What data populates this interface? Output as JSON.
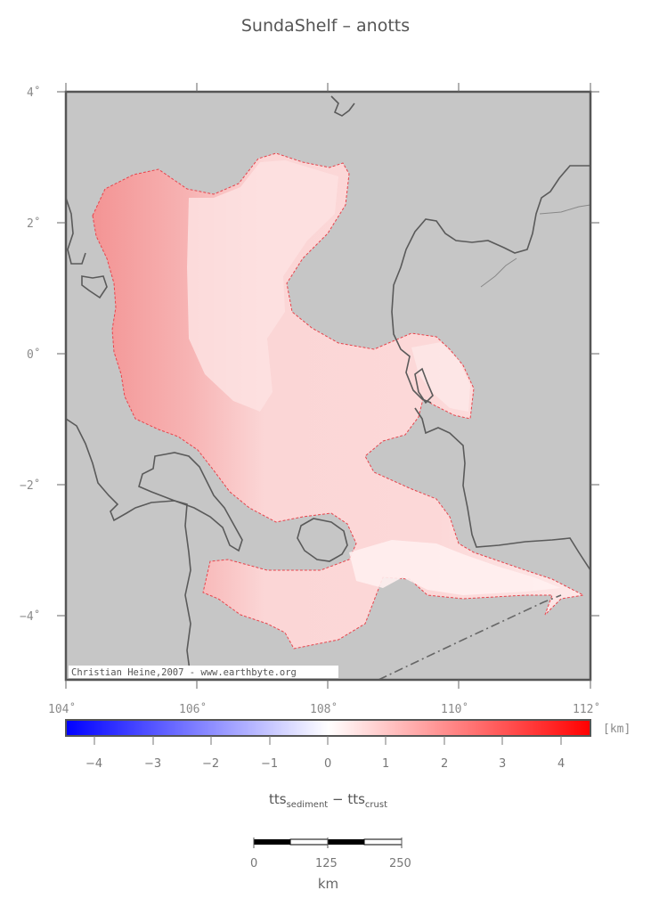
{
  "map": {
    "title": "SundaShelf – anotts",
    "lat_labels": [
      "4˚",
      "2˚",
      "0˚",
      "−2˚",
      "−4˚"
    ],
    "lon_labels": [
      "104˚",
      "106˚",
      "108˚",
      "110˚",
      "112˚"
    ],
    "credit": "Christian Heine,2007 - www.earthbyte.org",
    "colors": {
      "land": "#c6c6c6",
      "anomaly_low": "#fce4e4",
      "anomaly_high": "#f49a9a",
      "outline": "#e8444c",
      "coast": "#555555"
    }
  },
  "colorbar": {
    "tick_labels": [
      "−4",
      "−3",
      "−2",
      "−1",
      "0",
      "1",
      "2",
      "3",
      "4"
    ],
    "unit": "[km]",
    "title_main": "tts",
    "title_sub1": "sediment",
    "title_sep": " − tts",
    "title_sub2": "crust"
  },
  "scalebar": {
    "labels": [
      "0",
      "125",
      "250"
    ],
    "unit": "km"
  }
}
